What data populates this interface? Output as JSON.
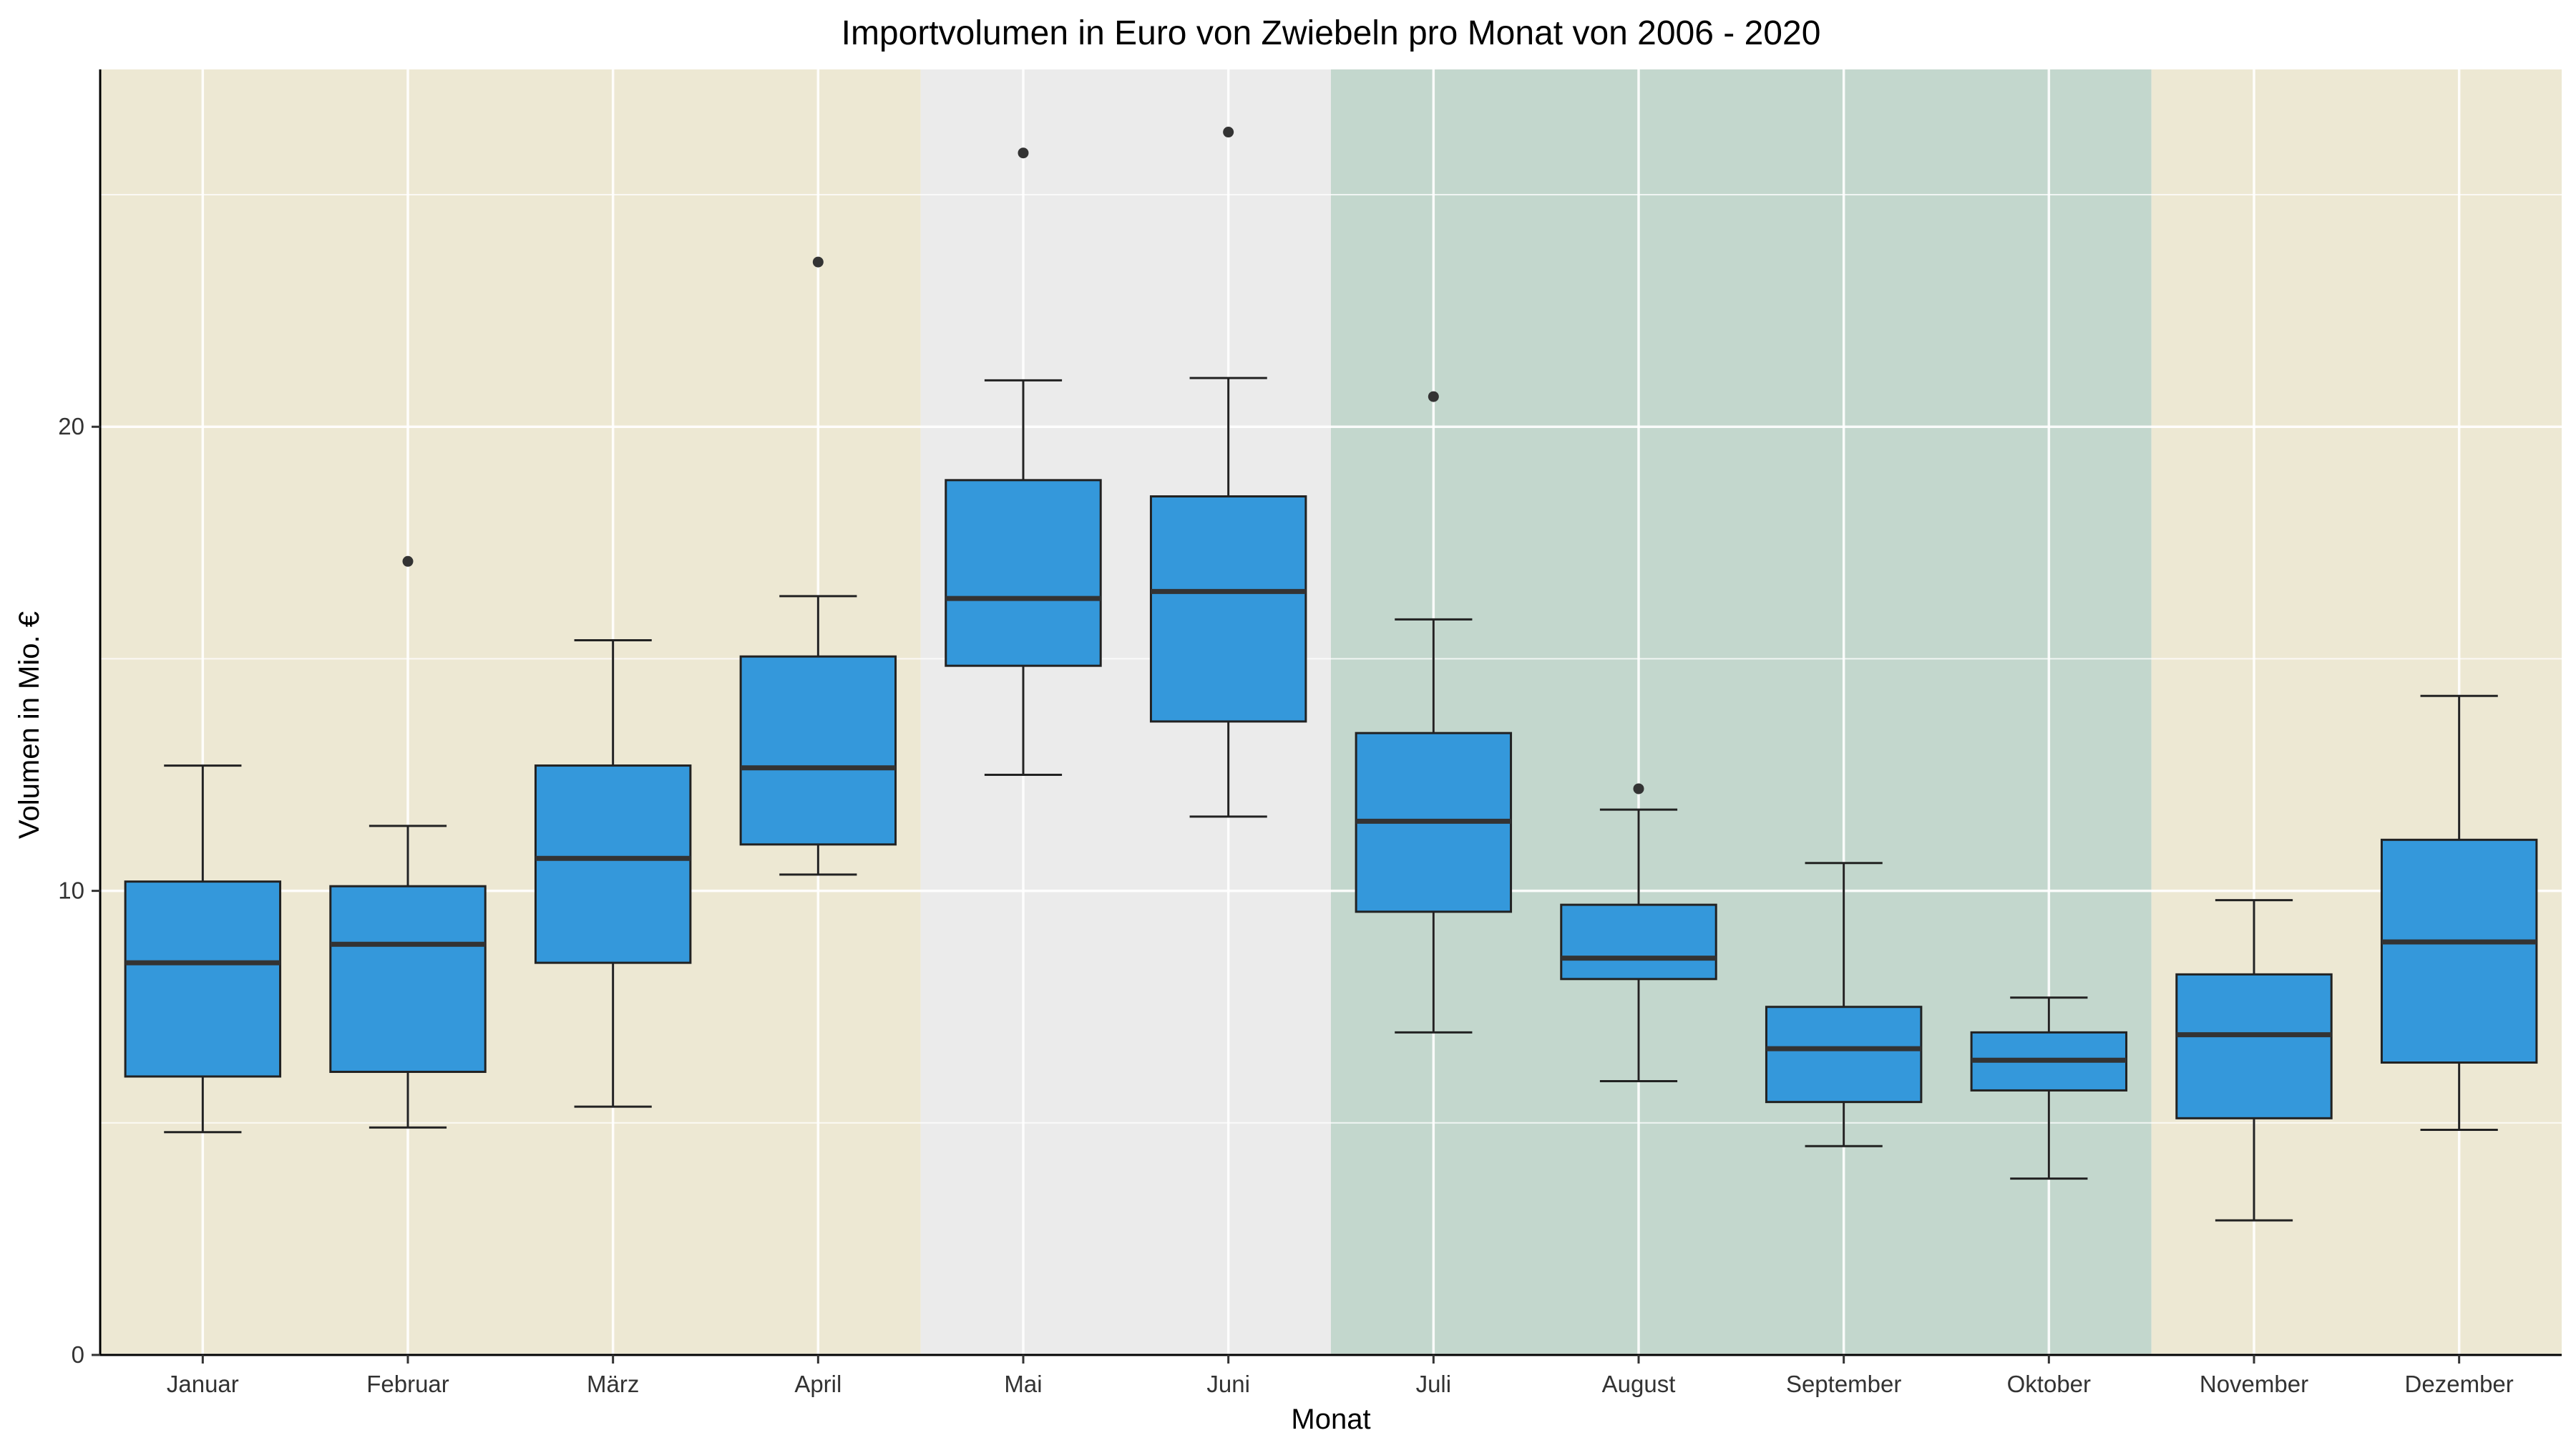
{
  "chart_data": {
    "type": "boxplot",
    "title": "Importvolumen in Euro von Zwiebeln pro Monat von 2006 - 2020",
    "xlabel": "Monat",
    "ylabel": "Volumen in Mio. €",
    "ylim": [
      0,
      27.7
    ],
    "yticks": [
      0,
      10,
      20
    ],
    "y_minor_gridlines": [
      5,
      15,
      25
    ],
    "grid": true,
    "categories": [
      "Januar",
      "Februar",
      "März",
      "April",
      "Mai",
      "Juni",
      "Juli",
      "August",
      "September",
      "Oktober",
      "November",
      "Dezember"
    ],
    "boxes": [
      {
        "category": "Januar",
        "lower_whisker": 4.8,
        "q1": 6.0,
        "median": 8.45,
        "q3": 10.2,
        "upper_whisker": 12.7,
        "outliers": []
      },
      {
        "category": "Februar",
        "lower_whisker": 4.9,
        "q1": 6.1,
        "median": 8.85,
        "q3": 10.1,
        "upper_whisker": 11.4,
        "outliers": [
          17.1
        ]
      },
      {
        "category": "März",
        "lower_whisker": 5.35,
        "q1": 8.45,
        "median": 10.7,
        "q3": 12.7,
        "upper_whisker": 15.4,
        "outliers": []
      },
      {
        "category": "April",
        "lower_whisker": 10.35,
        "q1": 11.0,
        "median": 12.65,
        "q3": 15.05,
        "upper_whisker": 16.35,
        "outliers": [
          23.55
        ]
      },
      {
        "category": "Mai",
        "lower_whisker": 12.5,
        "q1": 14.85,
        "median": 16.3,
        "q3": 18.85,
        "upper_whisker": 21.0,
        "outliers": [
          25.9
        ]
      },
      {
        "category": "Juni",
        "lower_whisker": 11.6,
        "q1": 13.65,
        "median": 16.45,
        "q3": 18.5,
        "upper_whisker": 21.05,
        "outliers": [
          26.35
        ]
      },
      {
        "category": "Juli",
        "lower_whisker": 6.95,
        "q1": 9.55,
        "median": 11.5,
        "q3": 13.4,
        "upper_whisker": 15.85,
        "outliers": [
          20.65
        ]
      },
      {
        "category": "August",
        "lower_whisker": 5.9,
        "q1": 8.1,
        "median": 8.55,
        "q3": 9.7,
        "upper_whisker": 11.75,
        "outliers": [
          12.2
        ]
      },
      {
        "category": "September",
        "lower_whisker": 4.5,
        "q1": 5.45,
        "median": 6.6,
        "q3": 7.5,
        "upper_whisker": 10.6,
        "outliers": []
      },
      {
        "category": "Oktober",
        "lower_whisker": 3.8,
        "q1": 5.7,
        "median": 6.35,
        "q3": 6.95,
        "upper_whisker": 7.7,
        "outliers": []
      },
      {
        "category": "November",
        "lower_whisker": 2.9,
        "q1": 5.1,
        "median": 6.9,
        "q3": 8.2,
        "upper_whisker": 9.8,
        "outliers": []
      },
      {
        "category": "Dezember",
        "lower_whisker": 4.85,
        "q1": 6.3,
        "median": 8.9,
        "q3": 11.1,
        "upper_whisker": 14.2,
        "outliers": []
      }
    ],
    "season_bands": [
      {
        "from": "Januar",
        "to": "April",
        "color": "#ede8d3"
      },
      {
        "from": "Mai",
        "to": "Juni",
        "color": "#ebebeb"
      },
      {
        "from": "Juli",
        "to": "Oktober",
        "color": "#c3d7cd"
      },
      {
        "from": "November",
        "to": "Dezember",
        "color": "#ede8d3"
      }
    ],
    "colors": {
      "box_fill": "#3498db",
      "box_stroke": "#222222",
      "median": "#333333",
      "outlier": "#333333",
      "grid": "#ffffff"
    }
  }
}
